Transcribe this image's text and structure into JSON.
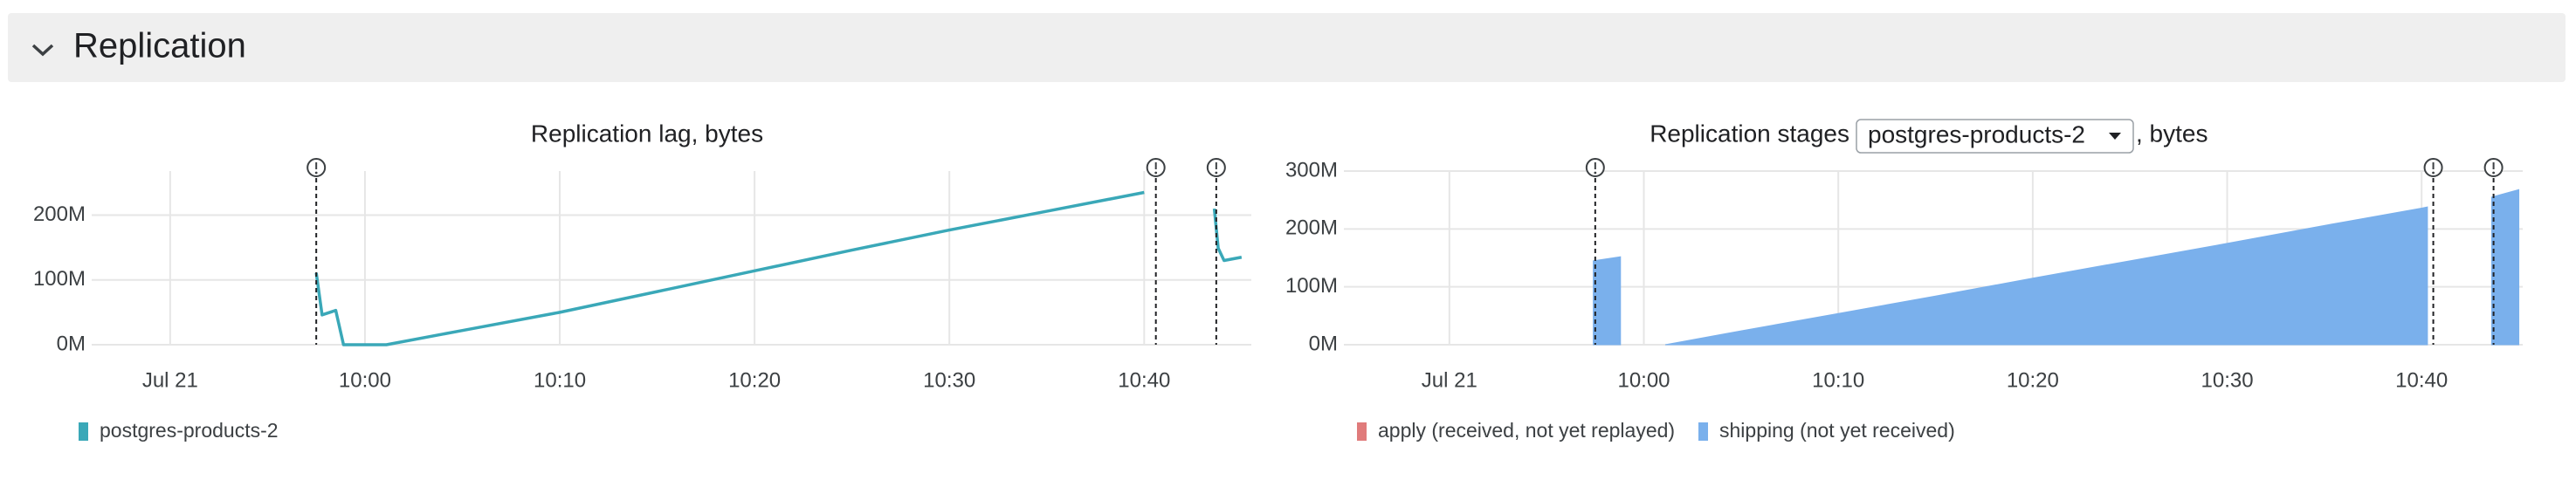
{
  "header": {
    "title": "Replication"
  },
  "chart_data": [
    {
      "type": "line",
      "title": "Replication lag, bytes",
      "x": [
        597.5,
        597.8,
        598.5,
        598.9,
        601.1,
        605,
        610,
        615,
        620,
        625,
        630,
        635,
        640,
        642,
        643.6,
        643.8,
        644.1,
        645.0
      ],
      "series": [
        {
          "name": "postgres-products-2",
          "color": "#3aa8b8",
          "values": [
            111000000,
            46000000,
            53000000,
            0,
            0,
            22000000,
            50000000,
            82000000,
            114000000,
            146000000,
            177000000,
            206000000,
            235000000,
            null,
            210000000,
            149000000,
            130000000,
            135000000
          ]
        }
      ],
      "xlim": [
        585.3,
        645.5
      ],
      "xticks": [
        {
          "value": 590,
          "label": "Jul 21"
        },
        {
          "value": 600,
          "label": "10:00"
        },
        {
          "value": 610,
          "label": "10:10"
        },
        {
          "value": 620,
          "label": "10:20"
        },
        {
          "value": 630,
          "label": "10:30"
        },
        {
          "value": 640,
          "label": "10:40"
        }
      ],
      "ylim": [
        0,
        268000000
      ],
      "yticks": [
        {
          "value": 0,
          "label": "0M"
        },
        {
          "value": 100000000,
          "label": "100M"
        },
        {
          "value": 200000000,
          "label": "200M"
        }
      ],
      "events": [
        597.5,
        640.6,
        643.7
      ],
      "grid": true
    },
    {
      "type": "area",
      "title": "Replication stages",
      "selector": "postgres-products-2",
      "title_suffix": ", bytes",
      "stacked": true,
      "x": [
        597.4,
        598.8,
        600,
        601.1,
        605,
        610,
        615,
        620,
        625,
        630,
        635,
        640,
        640.3,
        642,
        643.6,
        645.0
      ],
      "series": [
        {
          "name": "apply (received, not yet replayed)",
          "color": "#e07b7b",
          "values": [
            0,
            0,
            null,
            0,
            0,
            0,
            0,
            0,
            0,
            0,
            0,
            0,
            0,
            null,
            0,
            0
          ]
        },
        {
          "name": "shipping (not yet received)",
          "color": "#7ab0ec",
          "values": [
            145000000,
            152000000,
            null,
            0,
            24000000,
            54000000,
            84000000,
            115000000,
            145000000,
            175000000,
            206000000,
            236000000,
            238000000,
            null,
            255000000,
            268000000
          ]
        }
      ],
      "xlim": [
        583.9,
        645.2
      ],
      "xticks": [
        {
          "value": 590,
          "label": "Jul 21"
        },
        {
          "value": 600,
          "label": "10:00"
        },
        {
          "value": 610,
          "label": "10:10"
        },
        {
          "value": 620,
          "label": "10:20"
        },
        {
          "value": 630,
          "label": "10:30"
        },
        {
          "value": 640,
          "label": "10:40"
        }
      ],
      "ylim": [
        0,
        300000000
      ],
      "yticks": [
        {
          "value": 0,
          "label": "0M"
        },
        {
          "value": 100000000,
          "label": "100M"
        },
        {
          "value": 200000000,
          "label": "200M"
        },
        {
          "value": 300000000,
          "label": "300M"
        }
      ],
      "events": [
        597.5,
        640.6,
        643.7
      ],
      "grid": true
    }
  ]
}
